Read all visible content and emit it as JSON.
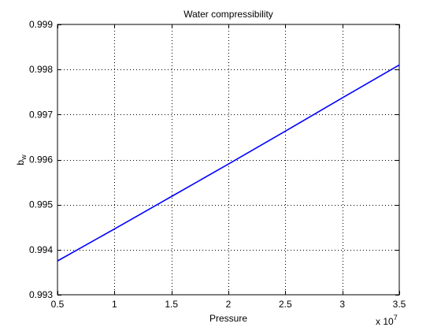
{
  "chart_data": {
    "type": "line",
    "title": "Water compressibility",
    "xlabel": "Pressure",
    "ylabel": "b",
    "ylabel_subscript": "w",
    "x_multiplier_label": "x 10",
    "x_multiplier_exponent": "7",
    "xlim": [
      0.5,
      3.5
    ],
    "ylim": [
      0.993,
      0.999
    ],
    "x_ticks": [
      0.5,
      1,
      1.5,
      2,
      2.5,
      3,
      3.5
    ],
    "x_tick_labels": [
      "0.5",
      "1",
      "1.5",
      "2",
      "2.5",
      "3",
      "3.5"
    ],
    "y_ticks": [
      0.993,
      0.994,
      0.995,
      0.996,
      0.997,
      0.998,
      0.999
    ],
    "y_tick_labels": [
      "0.993",
      "0.994",
      "0.995",
      "0.996",
      "0.997",
      "0.998",
      "0.999"
    ],
    "grid": true,
    "series": [
      {
        "color": "#0000ff",
        "x": [
          0.5,
          1.0,
          1.5,
          2.0,
          2.5,
          3.0,
          3.5
        ],
        "y": [
          0.99375,
          0.99446,
          0.99518,
          0.9959,
          0.99663,
          0.99737,
          0.9981
        ]
      }
    ]
  }
}
